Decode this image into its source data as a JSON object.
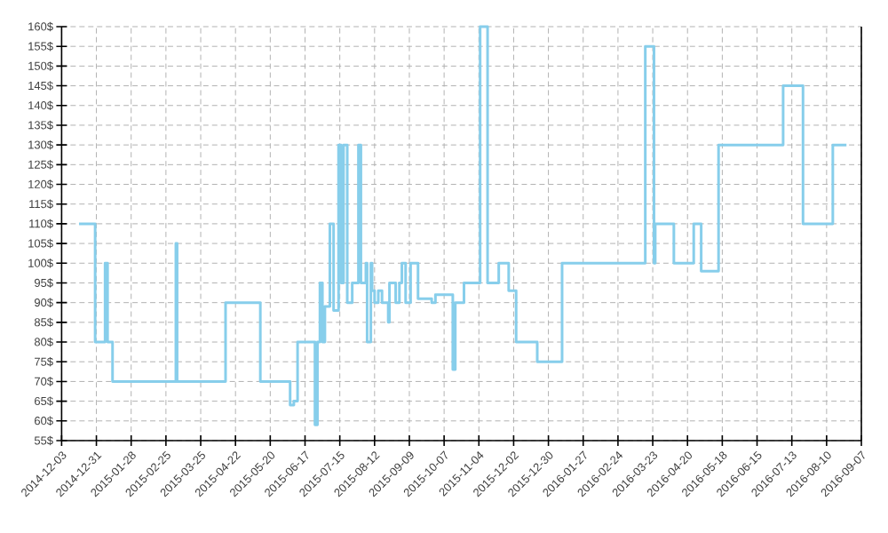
{
  "chart_data": {
    "type": "step",
    "color": "#87ceeb",
    "grid": true,
    "marker": "none",
    "line_style": "solid",
    "x": [
      "2014-12-17",
      "2014-12-30",
      "2015-01-07",
      "2015-01-09",
      "2015-01-13",
      "2015-03-05",
      "2015-03-06",
      "2015-04-14",
      "2015-05-12",
      "2015-06-05",
      "2015-06-08",
      "2015-06-11",
      "2015-06-25",
      "2015-06-27",
      "2015-06-29",
      "2015-07-01",
      "2015-07-03",
      "2015-07-07",
      "2015-07-10",
      "2015-07-14",
      "2015-07-16",
      "2015-07-18",
      "2015-07-21",
      "2015-07-25",
      "2015-07-30",
      "2015-08-01",
      "2015-08-05",
      "2015-08-06",
      "2015-08-09",
      "2015-08-10",
      "2015-08-12",
      "2015-08-15",
      "2015-08-18",
      "2015-08-23",
      "2015-08-24",
      "2015-08-29",
      "2015-09-01",
      "2015-09-03",
      "2015-09-06",
      "2015-09-10",
      "2015-09-16",
      "2015-09-27",
      "2015-09-30",
      "2015-10-14",
      "2015-10-16",
      "2015-10-23",
      "2015-11-05",
      "2015-11-11",
      "2015-11-20",
      "2015-11-28",
      "2015-12-04",
      "2015-12-21",
      "2016-01-10",
      "2016-03-17",
      "2016-03-24",
      "2016-03-25",
      "2016-04-09",
      "2016-04-25",
      "2016-05-01",
      "2016-05-15",
      "2016-07-06",
      "2016-07-22",
      "2016-08-15",
      "2016-08-26"
    ],
    "values": [
      110,
      80,
      100,
      80,
      70,
      105,
      70,
      90,
      70,
      64,
      65,
      80,
      59,
      80,
      95,
      80,
      89,
      110,
      88,
      130,
      95,
      130,
      90,
      95,
      130,
      95,
      100,
      80,
      100,
      93,
      90,
      93,
      90,
      85,
      95,
      90,
      95,
      100,
      90,
      100,
      91,
      90,
      92,
      73,
      90,
      95,
      160,
      95,
      100,
      93,
      80,
      75,
      100,
      155,
      100,
      110,
      100,
      110,
      98,
      130,
      145,
      110,
      130,
      130
    ],
    "xlim": [
      "2014-12-03",
      "2016-09-07"
    ],
    "xticks": [
      "2014-12-03",
      "2014-12-31",
      "2015-01-28",
      "2015-02-25",
      "2015-03-25",
      "2015-04-22",
      "2015-05-20",
      "2015-06-17",
      "2015-07-15",
      "2015-08-12",
      "2015-09-09",
      "2015-10-07",
      "2015-11-04",
      "2015-12-02",
      "2015-12-30",
      "2016-01-27",
      "2016-02-24",
      "2016-03-23",
      "2016-04-20",
      "2016-05-18",
      "2016-06-15",
      "2016-07-13",
      "2016-08-10",
      "2016-09-07"
    ],
    "ylim": [
      55,
      160
    ],
    "yticks": [
      {
        "value": 55,
        "label": "55$"
      },
      {
        "value": 60,
        "label": "60$"
      },
      {
        "value": 65,
        "label": "65$"
      },
      {
        "value": 70,
        "label": "70$"
      },
      {
        "value": 75,
        "label": "75$"
      },
      {
        "value": 80,
        "label": "80$"
      },
      {
        "value": 85,
        "label": "85$"
      },
      {
        "value": 90,
        "label": "90$"
      },
      {
        "value": 95,
        "label": "95$"
      },
      {
        "value": 100,
        "label": "100$"
      },
      {
        "value": 105,
        "label": "105$"
      },
      {
        "value": 110,
        "label": "110$"
      },
      {
        "value": 115,
        "label": "115$"
      },
      {
        "value": 120,
        "label": "120$"
      },
      {
        "value": 125,
        "label": "125$"
      },
      {
        "value": 130,
        "label": "130$"
      },
      {
        "value": 135,
        "label": "135$"
      },
      {
        "value": 140,
        "label": "140$"
      },
      {
        "value": 145,
        "label": "145$"
      },
      {
        "value": 150,
        "label": "150$"
      },
      {
        "value": 155,
        "label": "155$"
      },
      {
        "value": 160,
        "label": "160$"
      }
    ]
  }
}
